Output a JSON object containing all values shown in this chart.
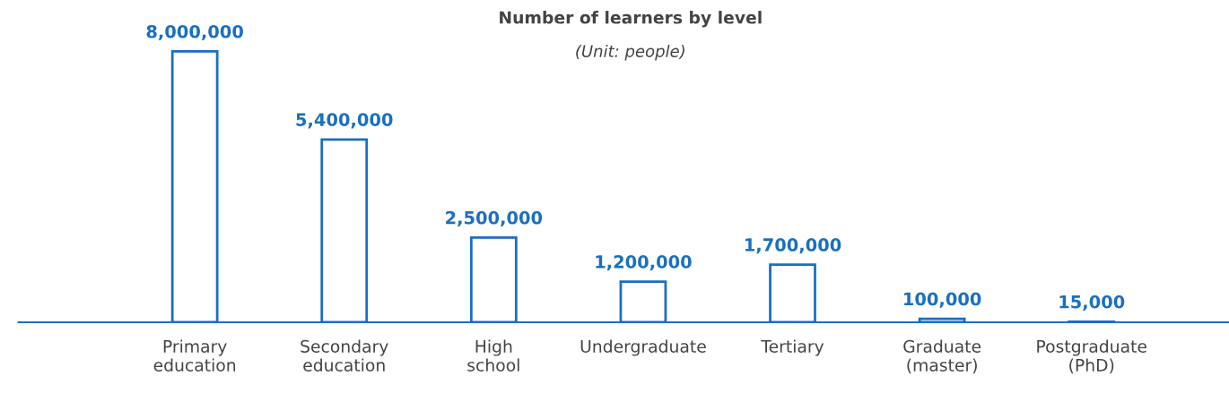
{
  "chart_data": {
    "type": "bar",
    "title": "Number of learners by level",
    "subtitle": "(Unit: people)",
    "categories": [
      "Primary\neducation",
      "Secondary\neducation",
      "High\nschool",
      "Undergraduate",
      "Tertiary",
      "Graduate\n(master)",
      "Postgraduate\n(PhD)"
    ],
    "values": [
      8000000,
      5400000,
      2500000,
      1200000,
      1700000,
      100000,
      15000
    ],
    "value_labels": [
      "8,000,000",
      "5,400,000",
      "2,500,000",
      "1,200,000",
      "1,700,000",
      "100,000",
      "15,000"
    ],
    "color": "#1a6fc0"
  }
}
